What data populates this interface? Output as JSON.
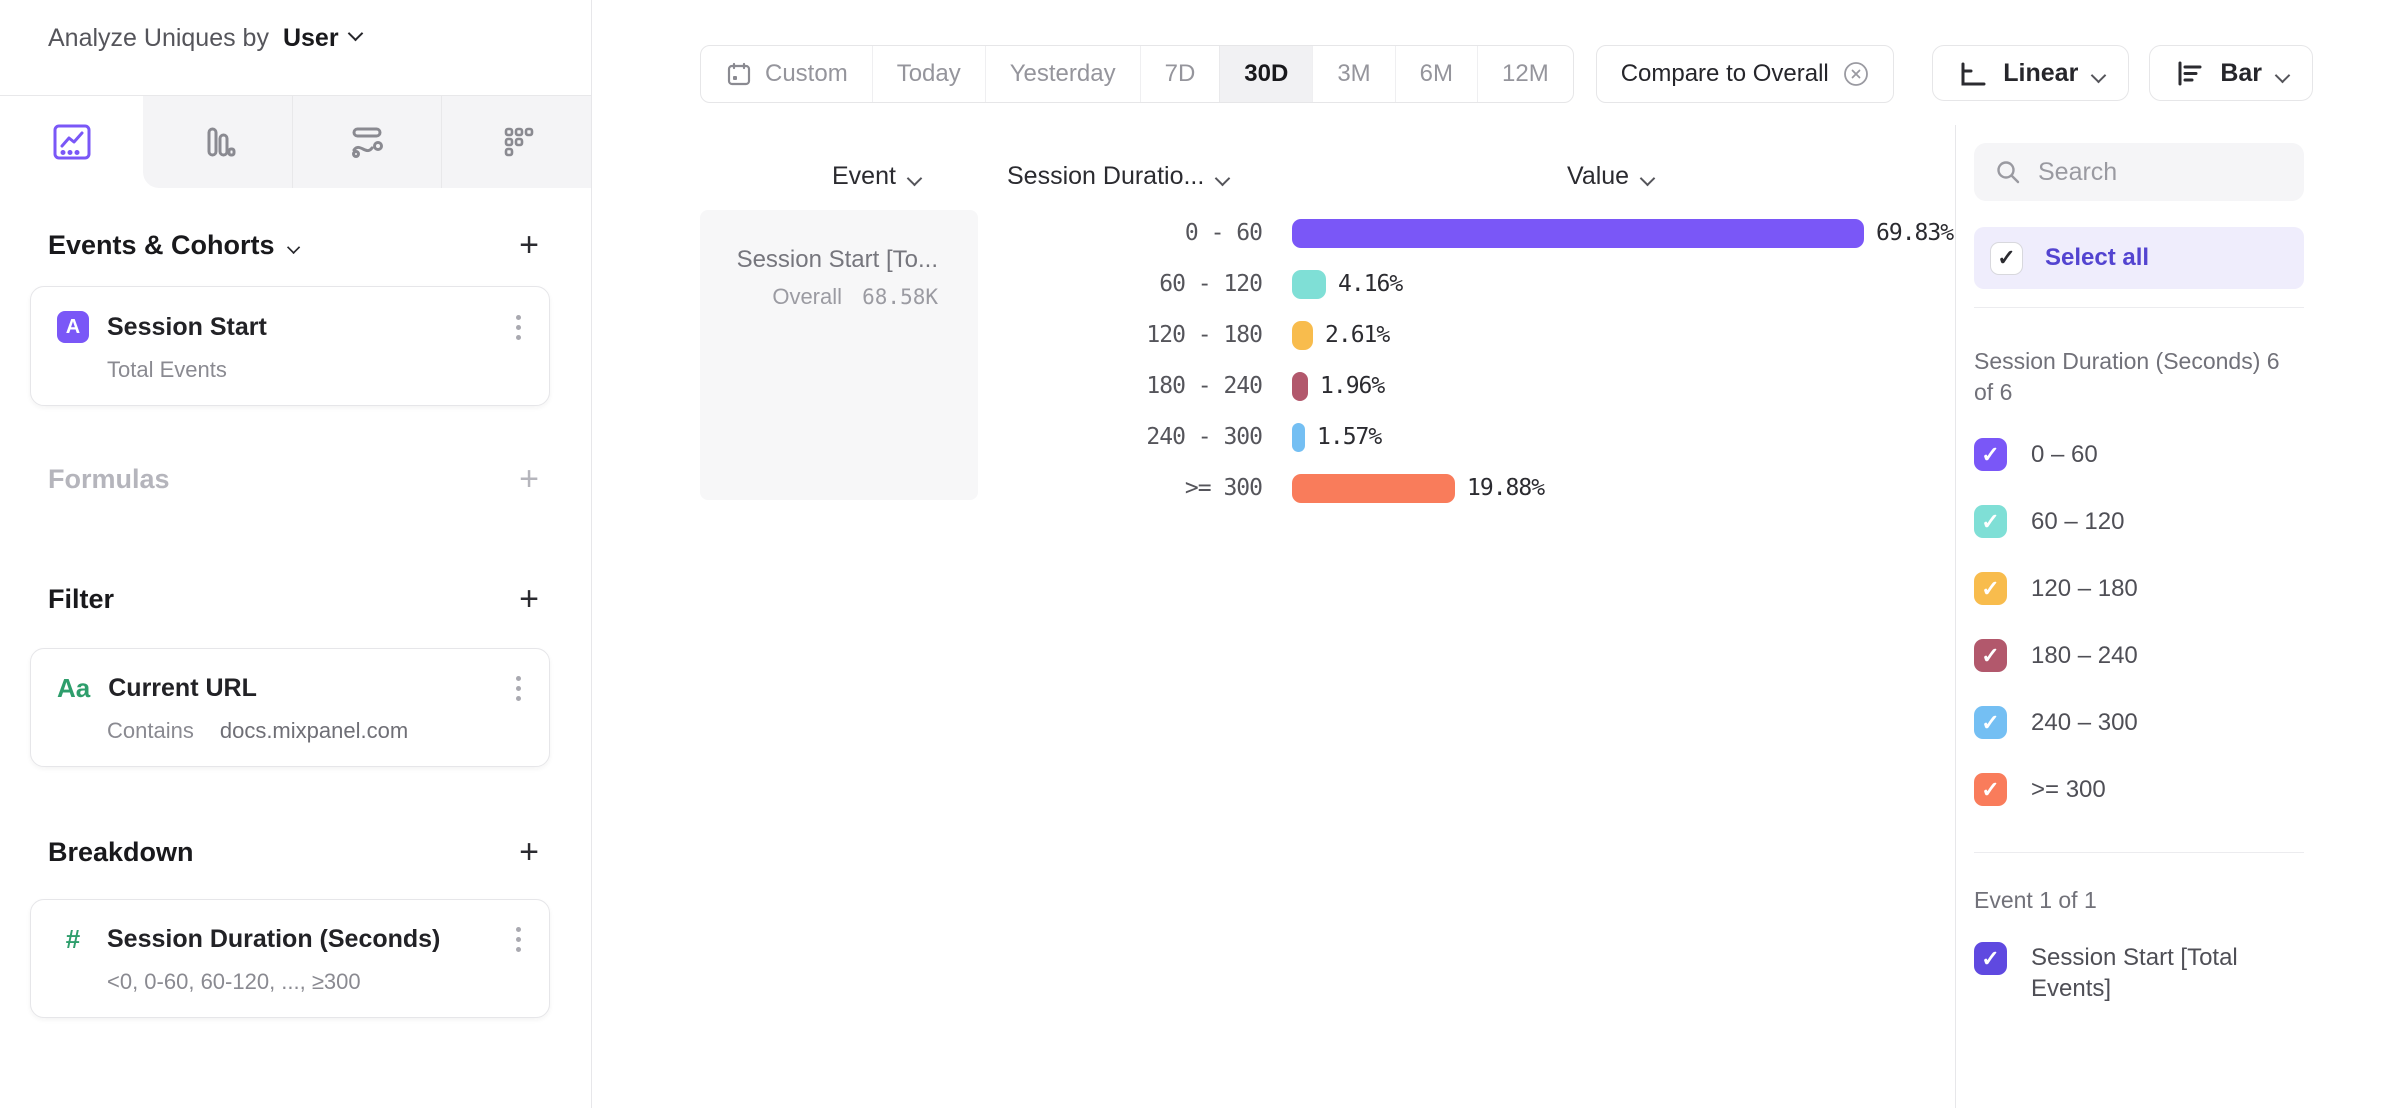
{
  "title": {
    "prefix": "Analyze Uniques by",
    "value": "User"
  },
  "builder": {
    "events": {
      "header": "Events & Cohorts",
      "card_badge": "A",
      "card_title": "Session Start",
      "card_subtitle": "Total Events"
    },
    "formulas": {
      "header": "Formulas"
    },
    "filter": {
      "header": "Filter",
      "card_badge": "Aa",
      "card_title": "Current URL",
      "card_operator": "Contains",
      "card_value": "docs.mixpanel.com"
    },
    "breakdown": {
      "header": "Breakdown",
      "card_badge": "#",
      "card_title": "Session Duration (Seconds)",
      "card_subtitle": "<0, 0-60, 60-120, ..., ≥300"
    }
  },
  "toolbar": {
    "ranges": [
      "Custom",
      "Today",
      "Yesterday",
      "7D",
      "30D",
      "3M",
      "6M",
      "12M"
    ],
    "selected_range": "30D",
    "compare_label": "Compare to Overall",
    "scale_label": "Linear",
    "chart_type_label": "Bar"
  },
  "chart": {
    "col_event": "Event",
    "col_breakdown": "Session Duratio...",
    "col_value": "Value",
    "event_title": "Session Start [To...",
    "overall_label": "Overall",
    "overall_value": "68.58K"
  },
  "chart_data": {
    "type": "bar",
    "orientation": "horizontal",
    "title": "Session Start [Total Events] by Session Duration (Seconds)",
    "categories": [
      "0 - 60",
      "60 - 120",
      "120 - 180",
      "180 - 240",
      "240 - 300",
      ">= 300"
    ],
    "values": [
      69.83,
      4.16,
      2.61,
      1.96,
      1.57,
      19.88
    ],
    "unit": "%",
    "colors": [
      "#7A57F7",
      "#7FDFD6",
      "#F8BC4D",
      "#B2586C",
      "#74BFF3",
      "#F97C5B"
    ],
    "xlim": [
      0,
      100
    ],
    "overall_total": "68.58K"
  },
  "legend": {
    "search_placeholder": "Search",
    "select_all": "Select all",
    "group_label": "Session Duration (Seconds) 6 of 6",
    "items": [
      {
        "label": "0 – 60",
        "color": "#7A57F7",
        "checked": true
      },
      {
        "label": "60 – 120",
        "color": "#7FDFD6",
        "checked": true
      },
      {
        "label": "120 – 180",
        "color": "#F8BC4D",
        "checked": true
      },
      {
        "label": "180 – 240",
        "color": "#B2586C",
        "checked": true
      },
      {
        "label": "240 – 300",
        "color": "#74BFF3",
        "checked": true
      },
      {
        "label": ">= 300",
        "color": "#F97C5B",
        "checked": true
      }
    ],
    "event_group_label": "Event 1 of 1",
    "event_item": {
      "label": "Session Start [Total Events]",
      "color": "#5F49E0",
      "checked": true
    }
  },
  "colors": {
    "accent": "#7A57F7",
    "green": "#2E9E6C"
  }
}
